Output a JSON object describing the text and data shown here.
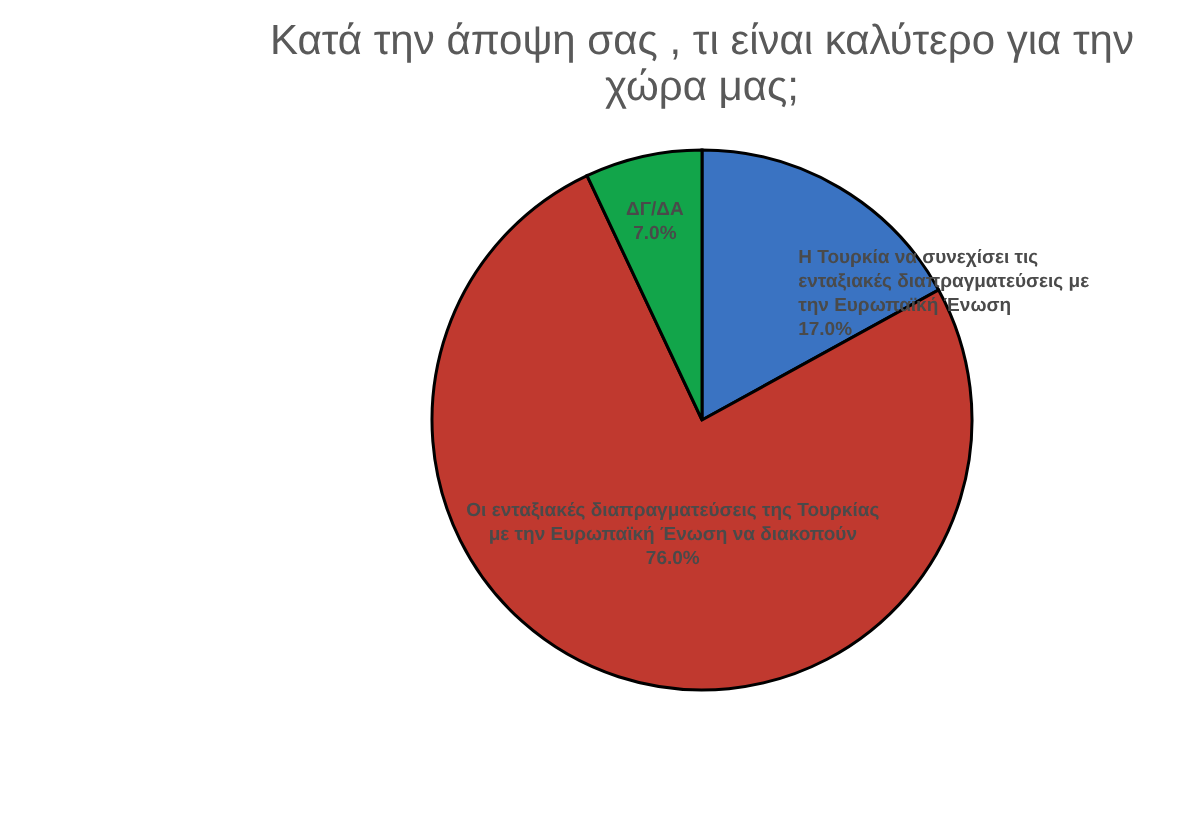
{
  "chart_data": {
    "type": "pie",
    "title": "Κατά την άποψη σας , τι είναι καλύτερο για την χώρα μας;",
    "categories": [
      "Η Τουρκία να συνεχίσει τις ενταξιακές διαπραγματεύσεις με την Ευρωπαϊκή Ένωση",
      "Οι ενταξιακές διαπραγματεύσεις της Τουρκίας με την Ευρωπαϊκή Ένωση να διακοπούν",
      "ΔΓ/ΔΑ"
    ],
    "values": [
      17,
      76,
      7
    ],
    "colors": [
      "#3a73c2",
      "#c0392f",
      "#12a54a"
    ],
    "value_labels": [
      "17.0%",
      "76.0%",
      "7.0%"
    ],
    "legend": false
  }
}
